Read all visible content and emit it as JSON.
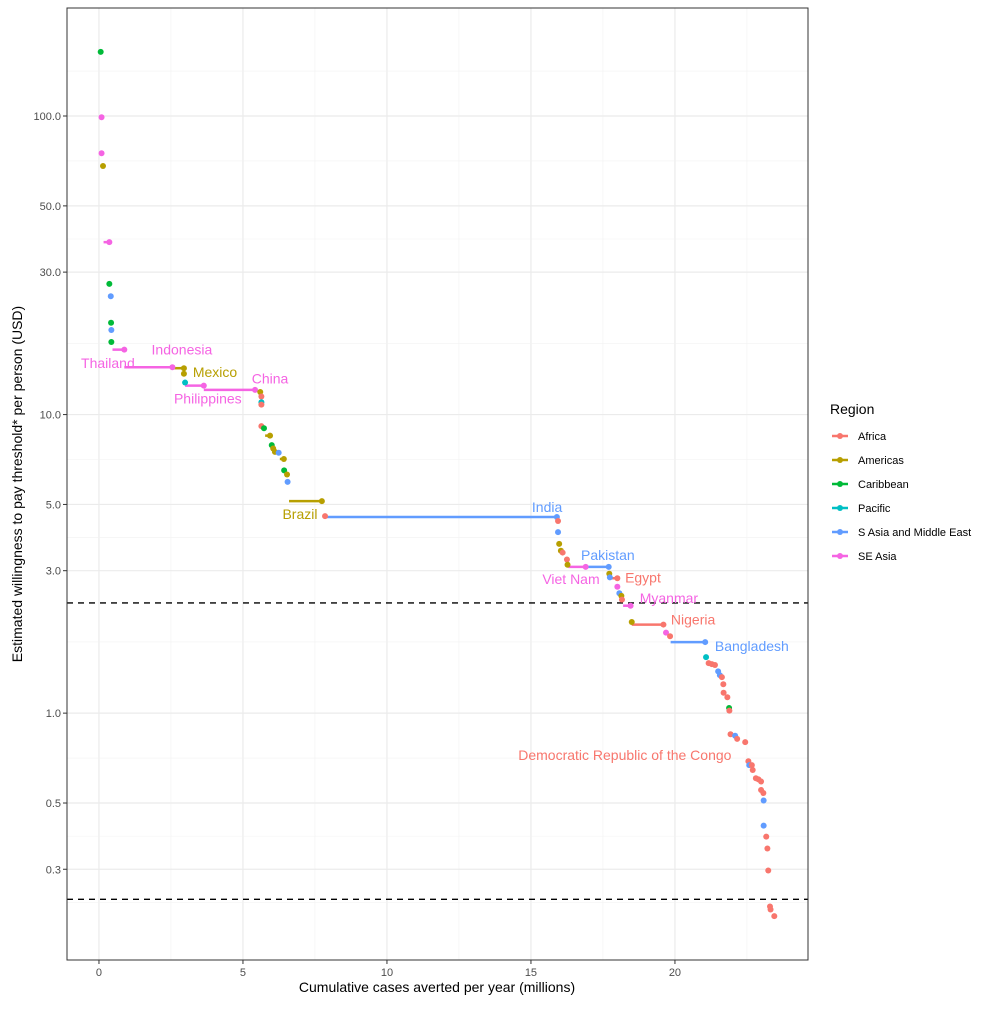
{
  "chart_data": {
    "type": "scatter",
    "xlabel": "Cumulative cases averted per year (millions)",
    "ylabel": "Estimated willingness to pay threshold* per person (USD)",
    "xlim": [
      -1.11,
      24.62
    ],
    "ylim": [
      0.149,
      230
    ],
    "y_scale": "log",
    "x_ticks": [
      0,
      5,
      10,
      15,
      20
    ],
    "y_ticks": [
      0.3,
      0.5,
      1.0,
      3.0,
      5.0,
      10.0,
      30.0,
      50.0,
      100.0
    ],
    "y_tick_labels": [
      "0.3",
      "0.5",
      "1.0",
      "3.0",
      "5.0",
      "10.0",
      "30.0",
      "50.0",
      "100.0"
    ],
    "grid": true,
    "reference_lines_y": [
      2.34,
      0.238
    ],
    "legend": {
      "title": "Region",
      "placement": "right",
      "entries": [
        {
          "name": "Africa",
          "color": "#F8766D"
        },
        {
          "name": "Americas",
          "color": "#B79F00"
        },
        {
          "name": "Caribbean",
          "color": "#00BA38"
        },
        {
          "name": "Pacific",
          "color": "#00BFC4"
        },
        {
          "name": "S Asia and Middle East",
          "color": "#619CFF"
        },
        {
          "name": "SE Asia",
          "color": "#F564E3"
        }
      ]
    },
    "segments": [
      {
        "region": "SE Asia",
        "x0": 0.16,
        "x1": 0.36,
        "y": 37.8
      },
      {
        "region": "SE Asia",
        "x0": 0.47,
        "x1": 0.88,
        "y": 16.5
      },
      {
        "region": "SE Asia",
        "x0": 0.88,
        "x1": 2.55,
        "y": 14.4
      },
      {
        "region": "Americas",
        "x0": 2.55,
        "x1": 2.95,
        "y": 14.3
      },
      {
        "region": "SE Asia",
        "x0": 2.99,
        "x1": 3.64,
        "y": 12.5
      },
      {
        "region": "SE Asia",
        "x0": 3.64,
        "x1": 5.42,
        "y": 12.1
      },
      {
        "region": "Americas",
        "x0": 5.77,
        "x1": 5.94,
        "y": 8.5
      },
      {
        "region": "Americas",
        "x0": 6.28,
        "x1": 6.42,
        "y": 7.1
      },
      {
        "region": "Americas",
        "x0": 6.6,
        "x1": 7.74,
        "y": 5.13
      },
      {
        "region": "S Asia and Middle East",
        "x0": 7.85,
        "x1": 15.9,
        "y": 4.54
      },
      {
        "region": "SE Asia",
        "x0": 16.3,
        "x1": 16.9,
        "y": 3.09
      },
      {
        "region": "S Asia and Middle East",
        "x0": 16.9,
        "x1": 17.7,
        "y": 3.09
      },
      {
        "region": "Africa",
        "x0": 17.74,
        "x1": 18.0,
        "y": 2.83
      },
      {
        "region": "SE Asia",
        "x0": 18.2,
        "x1": 18.46,
        "y": 2.29
      },
      {
        "region": "Africa",
        "x0": 18.5,
        "x1": 19.6,
        "y": 1.98
      },
      {
        "region": "S Asia and Middle East",
        "x0": 19.85,
        "x1": 21.05,
        "y": 1.73
      },
      {
        "region": "Africa",
        "x0": 21.17,
        "x1": 21.39,
        "y": 1.46
      }
    ],
    "points": [
      {
        "x": 0.06,
        "y": 164,
        "region": "Caribbean"
      },
      {
        "x": 0.09,
        "y": 99,
        "region": "SE Asia"
      },
      {
        "x": 0.09,
        "y": 75,
        "region": "SE Asia"
      },
      {
        "x": 0.14,
        "y": 68,
        "region": "Americas"
      },
      {
        "x": 0.36,
        "y": 37.8,
        "region": "SE Asia"
      },
      {
        "x": 0.36,
        "y": 27.4,
        "region": "Caribbean"
      },
      {
        "x": 0.41,
        "y": 24.9,
        "region": "S Asia and Middle East"
      },
      {
        "x": 0.42,
        "y": 20.3,
        "region": "Caribbean"
      },
      {
        "x": 0.43,
        "y": 19.2,
        "region": "S Asia and Middle East"
      },
      {
        "x": 0.43,
        "y": 17.5,
        "region": "Caribbean"
      },
      {
        "x": 0.88,
        "y": 16.5,
        "region": "SE Asia"
      },
      {
        "x": 2.55,
        "y": 14.4,
        "region": "SE Asia"
      },
      {
        "x": 2.95,
        "y": 14.3,
        "region": "Americas"
      },
      {
        "x": 2.95,
        "y": 13.7,
        "region": "Americas"
      },
      {
        "x": 2.99,
        "y": 12.8,
        "region": "Pacific"
      },
      {
        "x": 3.64,
        "y": 12.5,
        "region": "SE Asia"
      },
      {
        "x": 5.42,
        "y": 12.1,
        "region": "SE Asia"
      },
      {
        "x": 5.6,
        "y": 11.9,
        "region": "Americas"
      },
      {
        "x": 5.64,
        "y": 11.5,
        "region": "Africa"
      },
      {
        "x": 5.64,
        "y": 11.0,
        "region": "Pacific"
      },
      {
        "x": 5.64,
        "y": 10.8,
        "region": "Africa"
      },
      {
        "x": 5.64,
        "y": 9.15,
        "region": "Africa"
      },
      {
        "x": 5.73,
        "y": 9.0,
        "region": "Caribbean"
      },
      {
        "x": 5.94,
        "y": 8.5,
        "region": "Americas"
      },
      {
        "x": 6.0,
        "y": 7.9,
        "region": "Caribbean"
      },
      {
        "x": 6.05,
        "y": 7.7,
        "region": "Americas"
      },
      {
        "x": 6.11,
        "y": 7.5,
        "region": "Americas"
      },
      {
        "x": 6.24,
        "y": 7.45,
        "region": "S Asia and Middle East"
      },
      {
        "x": 6.42,
        "y": 7.1,
        "region": "Americas"
      },
      {
        "x": 6.43,
        "y": 6.5,
        "region": "Caribbean"
      },
      {
        "x": 6.53,
        "y": 6.3,
        "region": "Americas"
      },
      {
        "x": 6.55,
        "y": 5.95,
        "region": "S Asia and Middle East"
      },
      {
        "x": 7.74,
        "y": 5.13,
        "region": "Americas"
      },
      {
        "x": 7.85,
        "y": 4.57,
        "region": "Africa"
      },
      {
        "x": 15.9,
        "y": 4.54,
        "region": "S Asia and Middle East"
      },
      {
        "x": 15.94,
        "y": 4.4,
        "region": "Africa"
      },
      {
        "x": 15.94,
        "y": 4.04,
        "region": "S Asia and Middle East"
      },
      {
        "x": 15.98,
        "y": 3.69,
        "region": "Americas"
      },
      {
        "x": 16.04,
        "y": 3.5,
        "region": "Americas"
      },
      {
        "x": 16.1,
        "y": 3.45,
        "region": "Africa"
      },
      {
        "x": 16.25,
        "y": 3.27,
        "region": "Africa"
      },
      {
        "x": 16.27,
        "y": 3.14,
        "region": "Americas"
      },
      {
        "x": 16.9,
        "y": 3.09,
        "region": "SE Asia"
      },
      {
        "x": 17.7,
        "y": 3.09,
        "region": "S Asia and Middle East"
      },
      {
        "x": 17.72,
        "y": 2.93,
        "region": "Americas"
      },
      {
        "x": 17.74,
        "y": 2.85,
        "region": "S Asia and Middle East"
      },
      {
        "x": 18.0,
        "y": 2.83,
        "region": "Africa"
      },
      {
        "x": 18.0,
        "y": 2.65,
        "region": "SE Asia"
      },
      {
        "x": 18.07,
        "y": 2.52,
        "region": "S Asia and Middle East"
      },
      {
        "x": 18.14,
        "y": 2.47,
        "region": "Americas"
      },
      {
        "x": 18.16,
        "y": 2.4,
        "region": "Africa"
      },
      {
        "x": 18.46,
        "y": 2.29,
        "region": "SE Asia"
      },
      {
        "x": 18.5,
        "y": 2.02,
        "region": "Americas"
      },
      {
        "x": 19.6,
        "y": 1.98,
        "region": "Africa"
      },
      {
        "x": 19.69,
        "y": 1.86,
        "region": "SE Asia"
      },
      {
        "x": 19.83,
        "y": 1.81,
        "region": "Africa"
      },
      {
        "x": 21.05,
        "y": 1.73,
        "region": "S Asia and Middle East"
      },
      {
        "x": 21.08,
        "y": 1.54,
        "region": "Pacific"
      },
      {
        "x": 21.17,
        "y": 1.47,
        "region": "Africa"
      },
      {
        "x": 21.28,
        "y": 1.46,
        "region": "Africa"
      },
      {
        "x": 21.39,
        "y": 1.45,
        "region": "Africa"
      },
      {
        "x": 21.5,
        "y": 1.38,
        "region": "S Asia and Middle East"
      },
      {
        "x": 21.56,
        "y": 1.34,
        "region": "S Asia and Middle East"
      },
      {
        "x": 21.63,
        "y": 1.32,
        "region": "Africa"
      },
      {
        "x": 21.68,
        "y": 1.25,
        "region": "Africa"
      },
      {
        "x": 21.69,
        "y": 1.17,
        "region": "Africa"
      },
      {
        "x": 21.82,
        "y": 1.13,
        "region": "Africa"
      },
      {
        "x": 21.88,
        "y": 1.04,
        "region": "Caribbean"
      },
      {
        "x": 21.89,
        "y": 1.02,
        "region": "Africa"
      },
      {
        "x": 21.93,
        "y": 0.85,
        "region": "Africa"
      },
      {
        "x": 22.09,
        "y": 0.84,
        "region": "S Asia and Middle East"
      },
      {
        "x": 22.16,
        "y": 0.82,
        "region": "Africa"
      },
      {
        "x": 22.44,
        "y": 0.8,
        "region": "Africa"
      },
      {
        "x": 22.55,
        "y": 0.69,
        "region": "Africa"
      },
      {
        "x": 22.58,
        "y": 0.67,
        "region": "S Asia and Middle East"
      },
      {
        "x": 22.67,
        "y": 0.67,
        "region": "Africa"
      },
      {
        "x": 22.7,
        "y": 0.645,
        "region": "Africa"
      },
      {
        "x": 22.81,
        "y": 0.605,
        "region": "Africa"
      },
      {
        "x": 22.9,
        "y": 0.6,
        "region": "Africa"
      },
      {
        "x": 22.99,
        "y": 0.59,
        "region": "Africa"
      },
      {
        "x": 22.99,
        "y": 0.553,
        "region": "Africa"
      },
      {
        "x": 23.07,
        "y": 0.54,
        "region": "Africa"
      },
      {
        "x": 23.08,
        "y": 0.51,
        "region": "S Asia and Middle East"
      },
      {
        "x": 23.08,
        "y": 0.42,
        "region": "S Asia and Middle East"
      },
      {
        "x": 23.17,
        "y": 0.386,
        "region": "Africa"
      },
      {
        "x": 23.21,
        "y": 0.352,
        "region": "Africa"
      },
      {
        "x": 23.24,
        "y": 0.297,
        "region": "Africa"
      },
      {
        "x": 23.3,
        "y": 0.225,
        "region": "Africa"
      },
      {
        "x": 23.32,
        "y": 0.22,
        "region": "Africa"
      },
      {
        "x": 23.45,
        "y": 0.209,
        "region": "Africa"
      }
    ],
    "annotations": [
      {
        "text": "Indonesia",
        "region": "SE Asia",
        "x": 2.88,
        "y": 16.5
      },
      {
        "text": "Thailand",
        "region": "SE Asia",
        "x": 0.31,
        "y": 14.9
      },
      {
        "text": "Mexico",
        "region": "Americas",
        "x": 4.03,
        "y": 13.9
      },
      {
        "text": "Philippines",
        "region": "SE Asia",
        "x": 3.78,
        "y": 11.3
      },
      {
        "text": "China",
        "region": "SE Asia",
        "x": 5.94,
        "y": 13.2
      },
      {
        "text": "Brazil",
        "region": "Americas",
        "x": 6.98,
        "y": 4.64
      },
      {
        "text": "India",
        "region": "S Asia and Middle East",
        "x": 15.56,
        "y": 4.9
      },
      {
        "text": "Pakistan",
        "region": "S Asia and Middle East",
        "x": 17.67,
        "y": 3.38
      },
      {
        "text": "Viet Nam",
        "region": "SE Asia",
        "x": 16.39,
        "y": 2.81
      },
      {
        "text": "Egypt",
        "region": "Africa",
        "x": 18.89,
        "y": 2.85
      },
      {
        "text": "Myanmar",
        "region": "SE Asia",
        "x": 19.79,
        "y": 2.43
      },
      {
        "text": "Nigeria",
        "region": "Africa",
        "x": 20.63,
        "y": 2.06
      },
      {
        "text": "Bangladesh",
        "region": "S Asia and Middle East",
        "x": 22.67,
        "y": 1.68
      },
      {
        "text": "Democratic Republic of the Congo",
        "region": "Africa",
        "x": 18.26,
        "y": 0.723
      }
    ]
  }
}
